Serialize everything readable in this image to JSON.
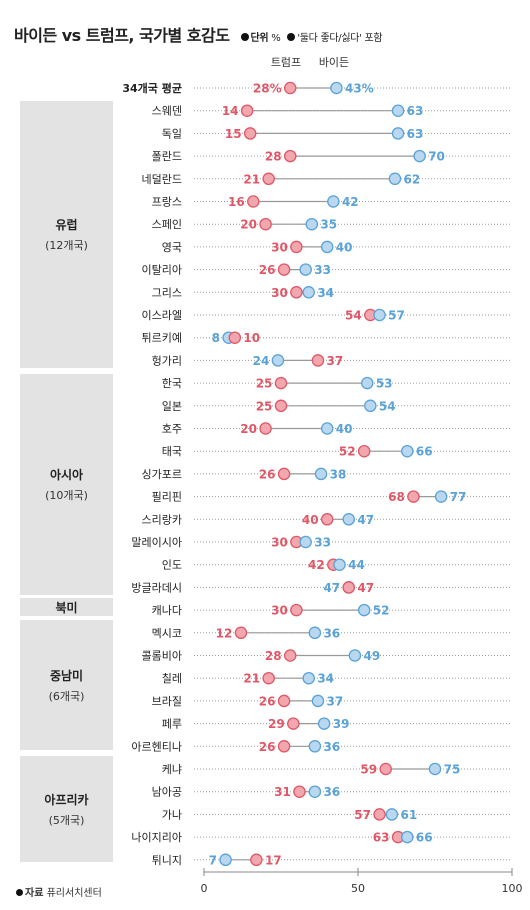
{
  "header": {
    "title": "바이든 vs 트럼프, 국가별 호감도",
    "unit_label": "단위",
    "unit_value": "%",
    "note": "'둘다 좋다/싫다' 포함"
  },
  "source": {
    "label": "자료",
    "value": "퓨리서치센터"
  },
  "colors": {
    "trump": "#e05867",
    "biden": "#5aa3d8",
    "trump_fill": "#f2a6ae",
    "biden_fill": "#b9d8ef",
    "region_bg": "#e3e3e3"
  },
  "regions": [
    {
      "name": "유럽",
      "count": "(12개국)"
    },
    {
      "name": "아시아",
      "count": "(10개국)"
    },
    {
      "name": "북미",
      "count": ""
    },
    {
      "name": "중남미",
      "count": "(6개국)"
    },
    {
      "name": "아프리카",
      "count": "(5개국)"
    }
  ],
  "chart_data": {
    "type": "scatter",
    "title": "바이든 vs 트럼프, 국가별 호감도",
    "unit": "%",
    "xlim": [
      0,
      100
    ],
    "xticks": [
      "0",
      "50",
      "100"
    ],
    "series": [
      {
        "name": "트럼프",
        "color": "#e05867"
      },
      {
        "name": "바이든",
        "color": "#5aa3d8"
      }
    ],
    "rows": [
      {
        "label": "34개국 평균",
        "trump": 28,
        "biden": 43,
        "trump_label": "28%",
        "biden_label": "43%",
        "bold": true
      },
      {
        "label": "스웨덴",
        "region": "유럽",
        "trump": 14,
        "biden": 63,
        "trump_label": "14",
        "biden_label": "63"
      },
      {
        "label": "독일",
        "region": "유럽",
        "trump": 15,
        "biden": 63,
        "trump_label": "15",
        "biden_label": "63"
      },
      {
        "label": "폴란드",
        "region": "유럽",
        "trump": 28,
        "biden": 70,
        "trump_label": "28",
        "biden_label": "70"
      },
      {
        "label": "네덜란드",
        "region": "유럽",
        "trump": 21,
        "biden": 62,
        "trump_label": "21",
        "biden_label": "62"
      },
      {
        "label": "프랑스",
        "region": "유럽",
        "trump": 16,
        "biden": 42,
        "trump_label": "16",
        "biden_label": "42"
      },
      {
        "label": "스페인",
        "region": "유럽",
        "trump": 20,
        "biden": 35,
        "trump_label": "20",
        "biden_label": "35"
      },
      {
        "label": "영국",
        "region": "유럽",
        "trump": 30,
        "biden": 40,
        "trump_label": "30",
        "biden_label": "40"
      },
      {
        "label": "이탈리아",
        "region": "유럽",
        "trump": 26,
        "biden": 33,
        "trump_label": "26",
        "biden_label": "33"
      },
      {
        "label": "그리스",
        "region": "유럽",
        "trump": 30,
        "biden": 34,
        "trump_label": "30",
        "biden_label": "34"
      },
      {
        "label": "이스라엘",
        "region": "유럽",
        "trump": 54,
        "biden": 57,
        "trump_label": "54",
        "biden_label": "57"
      },
      {
        "label": "튀르키예",
        "region": "유럽",
        "trump": 10,
        "biden": 8,
        "trump_label": "10",
        "biden_label": "8"
      },
      {
        "label": "헝가리",
        "region": "유럽",
        "trump": 37,
        "biden": 24,
        "trump_label": "37",
        "biden_label": "24"
      },
      {
        "label": "한국",
        "region": "아시아",
        "trump": 25,
        "biden": 53,
        "trump_label": "25",
        "biden_label": "53"
      },
      {
        "label": "일본",
        "region": "아시아",
        "trump": 25,
        "biden": 54,
        "trump_label": "25",
        "biden_label": "54"
      },
      {
        "label": "호주",
        "region": "아시아",
        "trump": 20,
        "biden": 40,
        "trump_label": "20",
        "biden_label": "40"
      },
      {
        "label": "태국",
        "region": "아시아",
        "trump": 52,
        "biden": 66,
        "trump_label": "52",
        "biden_label": "66"
      },
      {
        "label": "싱가포르",
        "region": "아시아",
        "trump": 26,
        "biden": 38,
        "trump_label": "26",
        "biden_label": "38"
      },
      {
        "label": "필리핀",
        "region": "아시아",
        "trump": 68,
        "biden": 77,
        "trump_label": "68",
        "biden_label": "77"
      },
      {
        "label": "스리랑카",
        "region": "아시아",
        "trump": 40,
        "biden": 47,
        "trump_label": "40",
        "biden_label": "47"
      },
      {
        "label": "말레이시아",
        "region": "아시아",
        "trump": 30,
        "biden": 33,
        "trump_label": "30",
        "biden_label": "33"
      },
      {
        "label": "인도",
        "region": "아시아",
        "trump": 42,
        "biden": 44,
        "trump_label": "42",
        "biden_label": "44"
      },
      {
        "label": "방글라데시",
        "region": "아시아",
        "trump": 47,
        "biden": 47,
        "trump_label": "47",
        "biden_label": "47"
      },
      {
        "label": "캐나다",
        "region": "북미",
        "trump": 30,
        "biden": 52,
        "trump_label": "30",
        "biden_label": "52"
      },
      {
        "label": "멕시코",
        "region": "중남미",
        "trump": 12,
        "biden": 36,
        "trump_label": "12",
        "biden_label": "36"
      },
      {
        "label": "콜롬비아",
        "region": "중남미",
        "trump": 28,
        "biden": 49,
        "trump_label": "28",
        "biden_label": "49"
      },
      {
        "label": "칠레",
        "region": "중남미",
        "trump": 21,
        "biden": 34,
        "trump_label": "21",
        "biden_label": "34"
      },
      {
        "label": "브라질",
        "region": "중남미",
        "trump": 26,
        "biden": 37,
        "trump_label": "26",
        "biden_label": "37"
      },
      {
        "label": "페루",
        "region": "중남미",
        "trump": 29,
        "biden": 39,
        "trump_label": "29",
        "biden_label": "39"
      },
      {
        "label": "아르헨티나",
        "region": "중남미",
        "trump": 26,
        "biden": 36,
        "trump_label": "26",
        "biden_label": "36"
      },
      {
        "label": "케냐",
        "region": "아프리카",
        "trump": 59,
        "biden": 75,
        "trump_label": "59",
        "biden_label": "75"
      },
      {
        "label": "남아공",
        "region": "아프리카",
        "trump": 31,
        "biden": 36,
        "trump_label": "31",
        "biden_label": "36"
      },
      {
        "label": "가나",
        "region": "아프리카",
        "trump": 57,
        "biden": 61,
        "trump_label": "57",
        "biden_label": "61"
      },
      {
        "label": "나이지리아",
        "region": "아프리카",
        "trump": 63,
        "biden": 66,
        "trump_label": "63",
        "biden_label": "66"
      },
      {
        "label": "튀니지",
        "region": "아프리카",
        "trump": 17,
        "biden": 7,
        "trump_label": "17",
        "biden_label": "7"
      }
    ]
  }
}
